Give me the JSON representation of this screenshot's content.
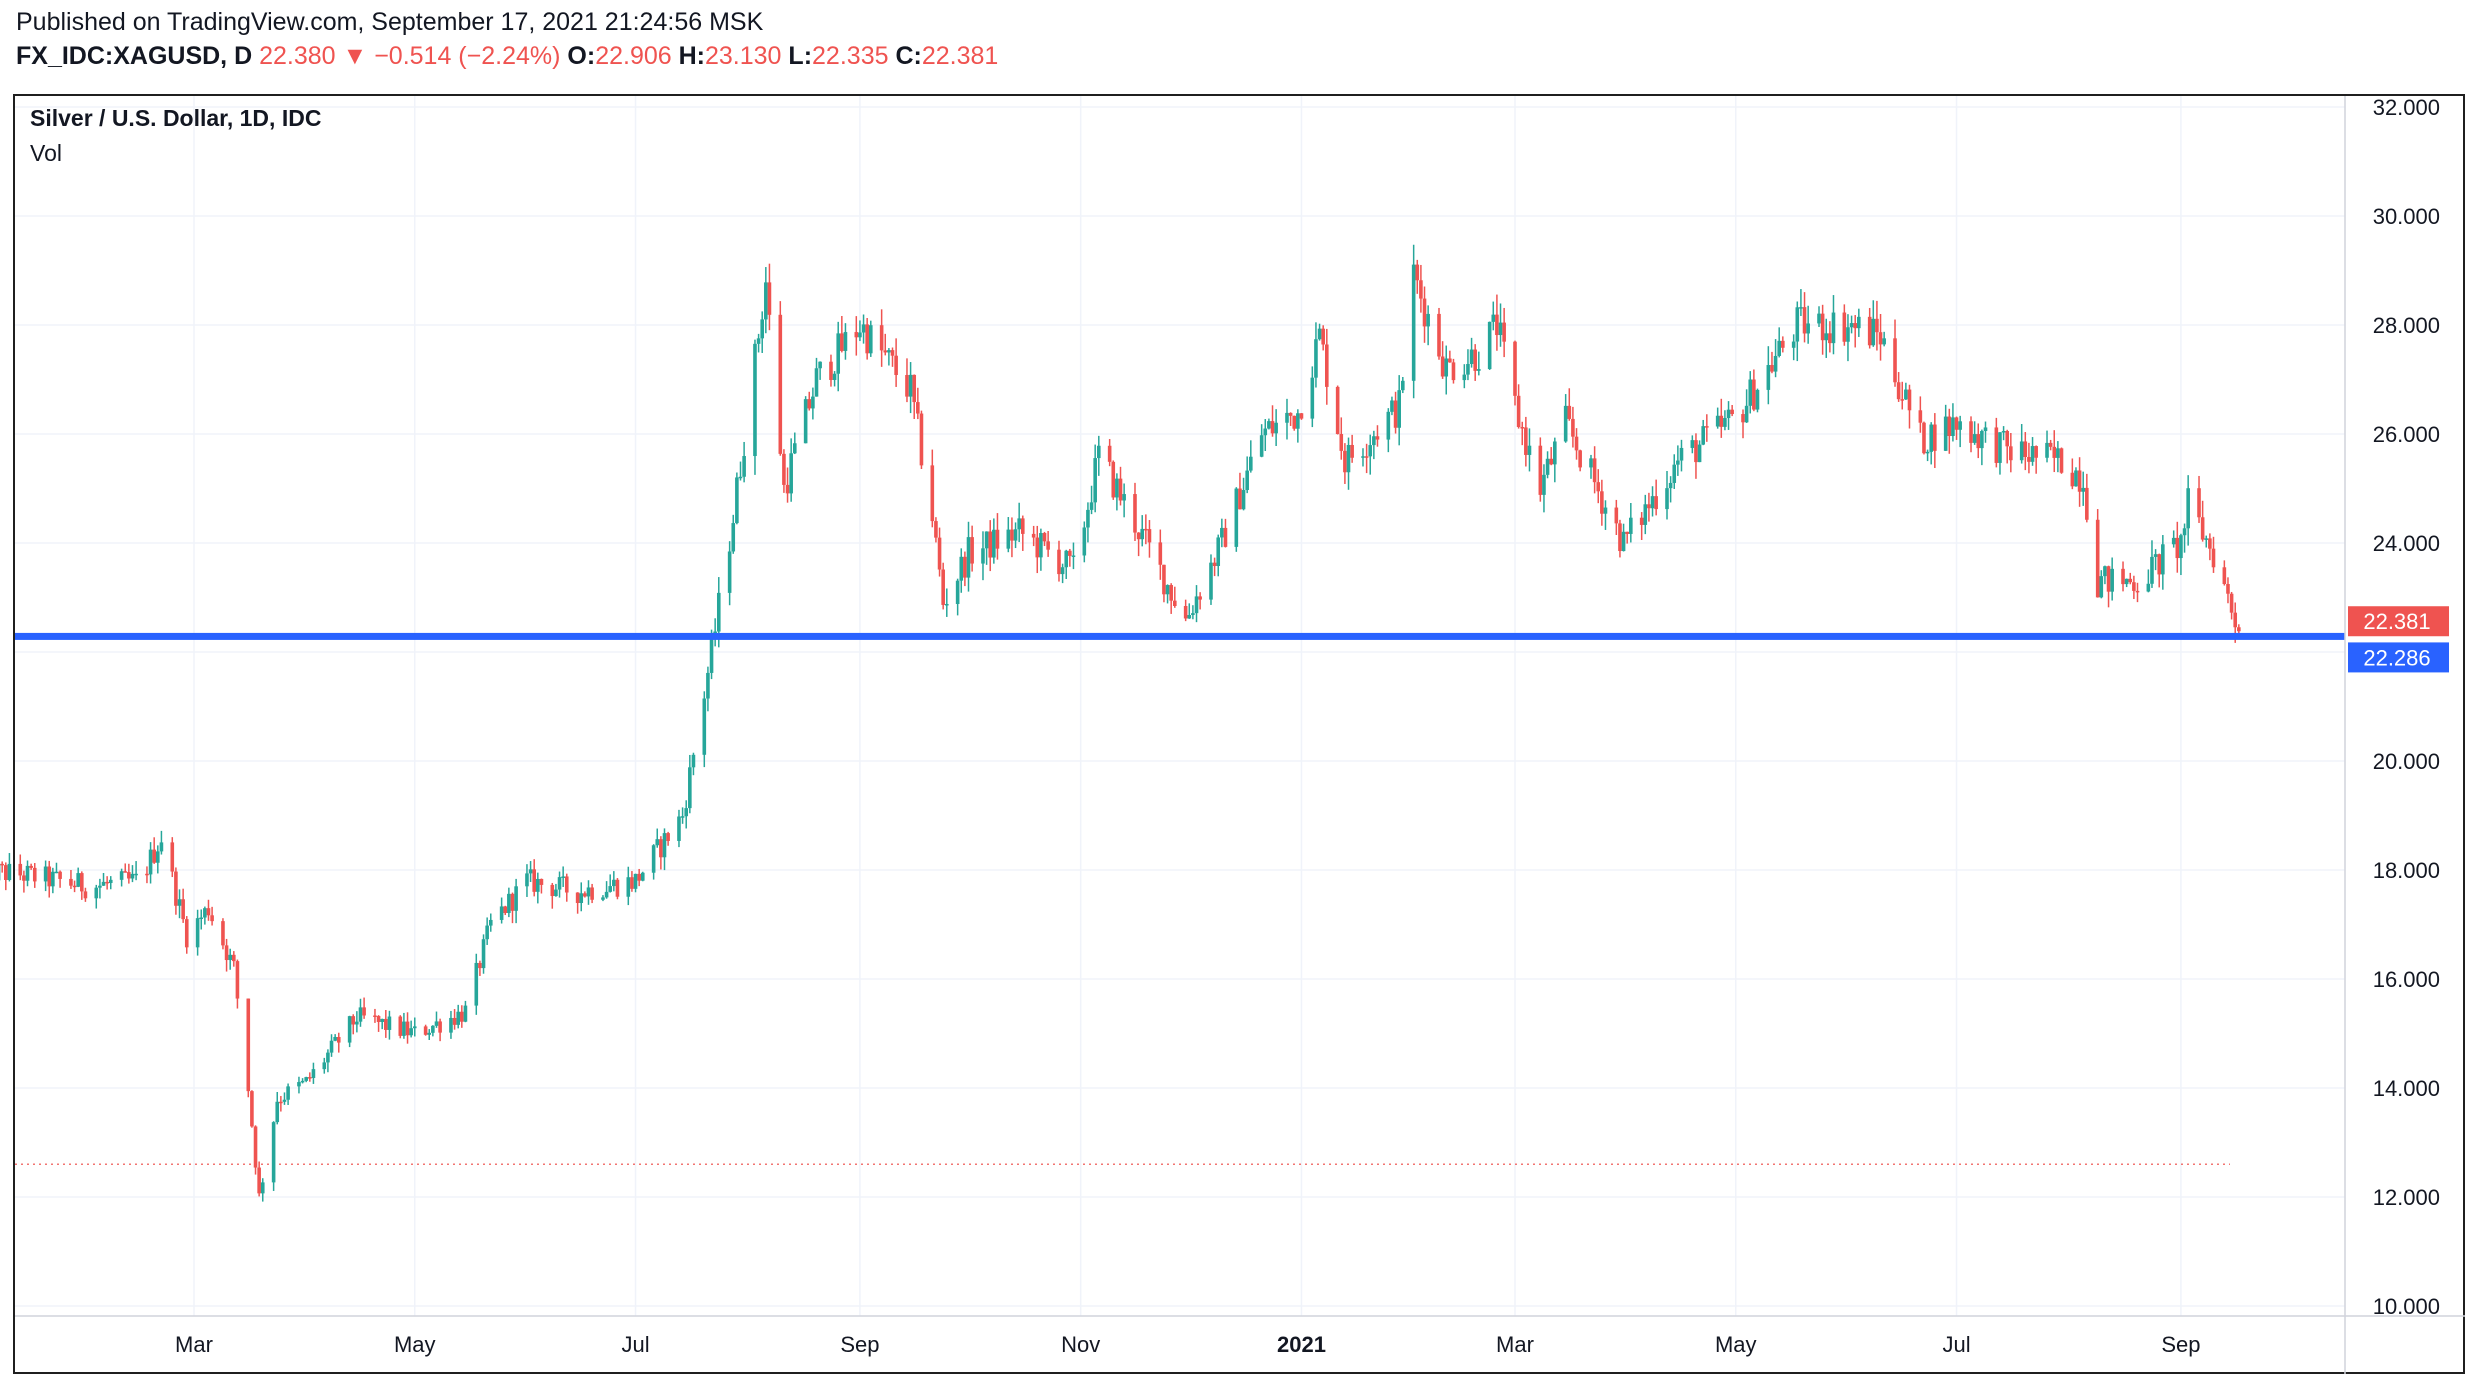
{
  "header": {
    "published": "Published on TradingView.com, September 17, 2021 21:24:56 MSK",
    "symbol": "FX_IDC:XAGUSD, D",
    "last": "22.380",
    "change": "−0.514 (−2.24%)",
    "o_label": "O:",
    "o": "22.906",
    "h_label": "H:",
    "h": "23.130",
    "l_label": "L:",
    "l": "22.335",
    "c_label": "C:",
    "c": "22.381"
  },
  "chart_data": {
    "type": "candlestick",
    "title": "Silver / U.S. Dollar, 1D, IDC",
    "indicator": "Vol",
    "x_ticks": [
      "Mar",
      "May",
      "Jul",
      "Sep",
      "Nov",
      "2021",
      "Mar",
      "May",
      "Jul",
      "Sep"
    ],
    "y_ticks": [
      "32.000",
      "30.000",
      "28.000",
      "26.000",
      "24.000",
      "22.000",
      "20.000",
      "18.000",
      "16.000",
      "14.000",
      "12.000",
      "10.000"
    ],
    "ylim": [
      10,
      32
    ],
    "grid": true,
    "horizontal_line": 22.286,
    "dotted_line": 12.6,
    "price_labels": [
      {
        "value": 22.381,
        "text": "22.381",
        "color": "#ef5350"
      },
      {
        "value": 22.286,
        "text": "22.286",
        "color": "#2962ff"
      }
    ],
    "waypoints": [
      [
        "2020-01-01",
        18.0
      ],
      [
        "2020-01-15",
        17.9
      ],
      [
        "2020-02-01",
        17.7
      ],
      [
        "2020-02-15",
        17.8
      ],
      [
        "2020-02-21",
        18.6
      ],
      [
        "2020-02-28",
        16.8
      ],
      [
        "2020-03-05",
        17.3
      ],
      [
        "2020-03-12",
        16.2
      ],
      [
        "2020-03-16",
        14.0
      ],
      [
        "2020-03-19",
        12.0
      ],
      [
        "2020-03-24",
        13.8
      ],
      [
        "2020-04-01",
        14.1
      ],
      [
        "2020-04-15",
        15.3
      ],
      [
        "2020-05-01",
        15.0
      ],
      [
        "2020-05-15",
        15.4
      ],
      [
        "2020-05-22",
        17.0
      ],
      [
        "2020-06-01",
        17.8
      ],
      [
        "2020-06-15",
        17.6
      ],
      [
        "2020-07-01",
        17.8
      ],
      [
        "2020-07-14",
        19.0
      ],
      [
        "2020-07-22",
        22.0
      ],
      [
        "2020-07-28",
        24.5
      ],
      [
        "2020-08-06",
        28.8
      ],
      [
        "2020-08-11",
        25.0
      ],
      [
        "2020-08-20",
        27.0
      ],
      [
        "2020-09-01",
        28.0
      ],
      [
        "2020-09-15",
        26.8
      ],
      [
        "2020-09-21",
        24.5
      ],
      [
        "2020-09-24",
        22.9
      ],
      [
        "2020-10-01",
        23.8
      ],
      [
        "2020-10-15",
        24.2
      ],
      [
        "2020-10-30",
        23.5
      ],
      [
        "2020-11-06",
        25.6
      ],
      [
        "2020-11-15",
        24.5
      ],
      [
        "2020-11-30",
        22.6
      ],
      [
        "2020-12-10",
        24.0
      ],
      [
        "2020-12-21",
        26.0
      ],
      [
        "2020-12-31",
        26.4
      ],
      [
        "2021-01-06",
        27.8
      ],
      [
        "2021-01-13",
        25.5
      ],
      [
        "2021-01-28",
        26.5
      ],
      [
        "2021-02-01",
        28.9
      ],
      [
        "2021-02-10",
        27.2
      ],
      [
        "2021-02-19",
        27.5
      ],
      [
        "2021-02-24",
        28.0
      ],
      [
        "2021-03-01",
        26.5
      ],
      [
        "2021-03-08",
        25.0
      ],
      [
        "2021-03-15",
        26.2
      ],
      [
        "2021-03-31",
        24.0
      ],
      [
        "2021-04-15",
        25.5
      ],
      [
        "2021-05-01",
        26.3
      ],
      [
        "2021-05-18",
        28.0
      ],
      [
        "2021-06-01",
        28.0
      ],
      [
        "2021-06-10",
        27.8
      ],
      [
        "2021-06-21",
        25.9
      ],
      [
        "2021-07-01",
        26.2
      ],
      [
        "2021-07-15",
        25.7
      ],
      [
        "2021-07-30",
        25.5
      ],
      [
        "2021-08-05",
        25.2
      ],
      [
        "2021-08-09",
        23.3
      ],
      [
        "2021-08-20",
        23.3
      ],
      [
        "2021-09-01",
        24.0
      ],
      [
        "2021-09-03",
        24.7
      ],
      [
        "2021-09-10",
        23.8
      ],
      [
        "2021-09-17",
        22.38
      ]
    ]
  }
}
